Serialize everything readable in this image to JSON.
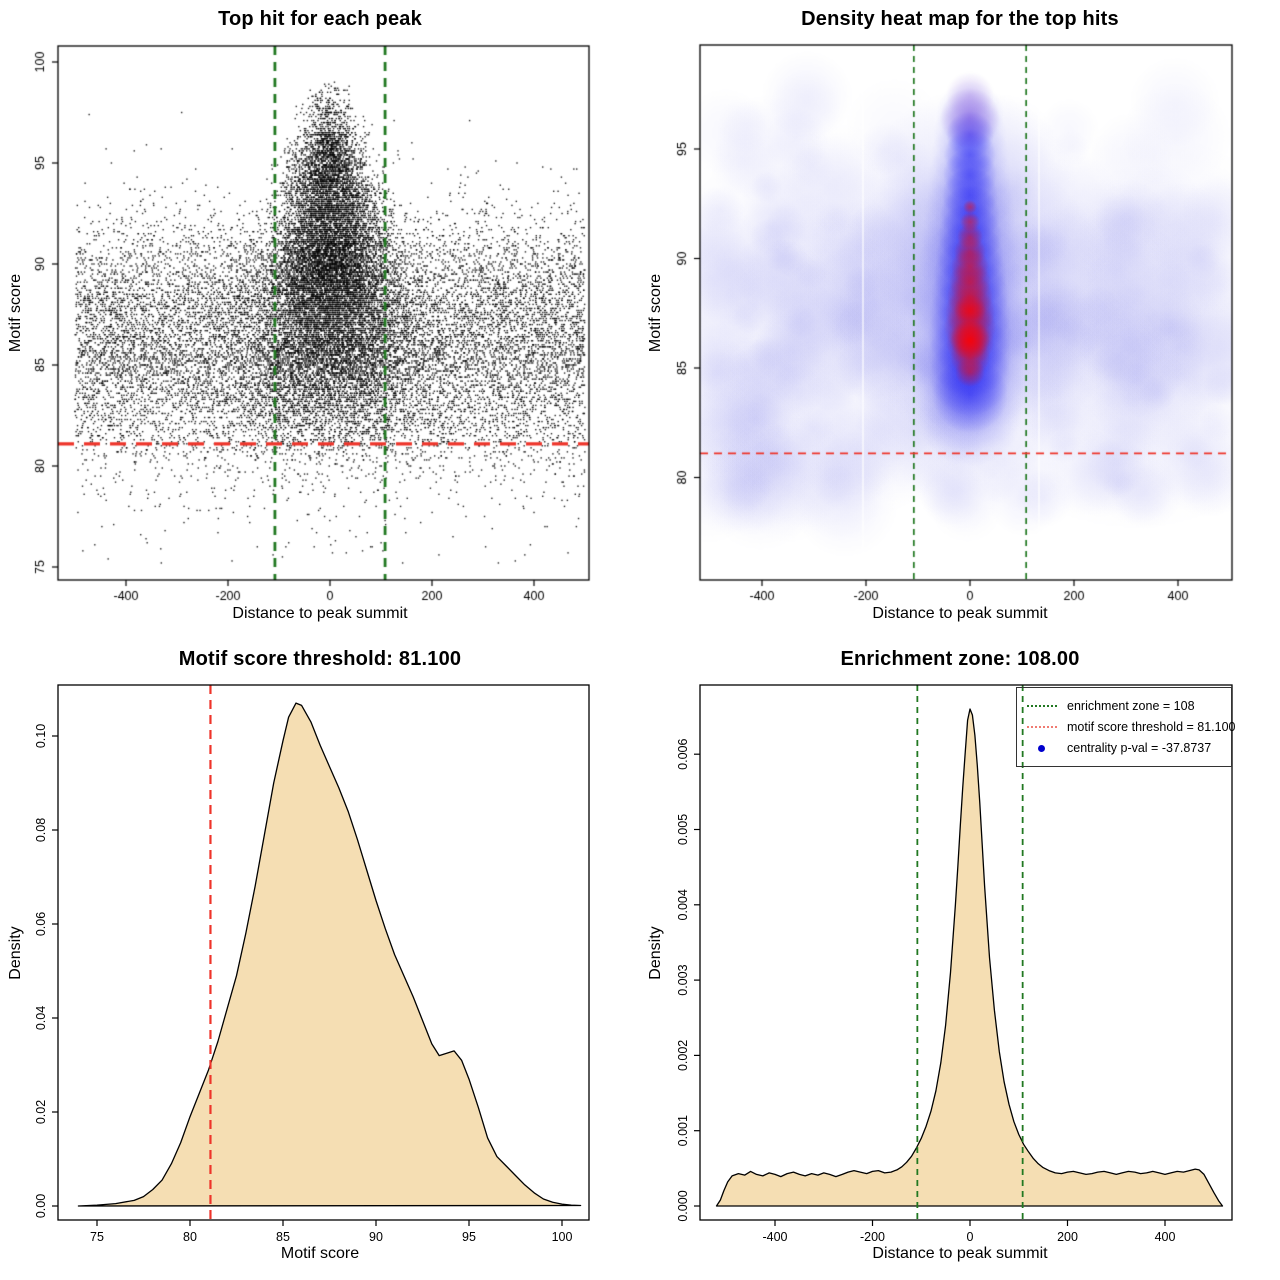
{
  "thresholds": {
    "motif_score_threshold": 81.1,
    "motif_score_threshold_label": "81.100",
    "enrichment_zone": 108,
    "enrichment_zone_label": "108.00",
    "centrality_p_val": "-37.8737"
  },
  "chart_data": [
    {
      "id": "top_hit_scatter",
      "type": "scatter",
      "title": "Top hit for each peak",
      "xlabel": "Distance to peak summit",
      "ylabel": "Motif score",
      "xlim": [
        -536,
        510
      ],
      "ylim": [
        74.4,
        100.8
      ],
      "xticks": [
        -400,
        -200,
        0,
        200,
        400
      ],
      "yticks": [
        75,
        80,
        85,
        90,
        95,
        100
      ],
      "points_description": "~26000 tiny black points; dense central column at distance 0 spanning scores 80-99.5 (widest below score 90, apex near 99.5), uniform background over distances -500..500 concentrated at scores 80-93, sparse outliers down to 75.5 and up to 97",
      "synthesis": {
        "n_background": 13000,
        "n_cluster": 13000,
        "seed": 1234
      },
      "vlines": [
        {
          "x": -108,
          "color": "#217821",
          "style": "dashed"
        },
        {
          "x": 108,
          "color": "#217821",
          "style": "dashed"
        }
      ],
      "hlines": [
        {
          "y": 81.1,
          "color": "#EE342A",
          "style": "dashed"
        }
      ]
    },
    {
      "id": "density_heatmap",
      "type": "heatmap",
      "title": "Density heat map for the top hits",
      "xlabel": "Distance to peak summit",
      "ylabel": "Motif score",
      "xlim": [
        -490,
        505
      ],
      "ylim": [
        75.3,
        99.8
      ],
      "xticks": [
        -400,
        -200,
        0,
        200,
        400
      ],
      "yticks": [
        80,
        85,
        90,
        95
      ],
      "colormap": [
        "#FFFFFF",
        "#8C8CEB",
        "#0000FF",
        "#FF0000"
      ],
      "hotspot": {
        "x": 0,
        "score_range": [
          83,
          97.5
        ],
        "peak_score": 87,
        "description": "teardrop-shaped density maximum centered at distance 0; red core over scores ~85-93 (brightest ~87), solid blue halo scores ~82-97, fading purple tip to ~99"
      },
      "background": "faint mottled light-blue wash across all distances between scores ~79 and ~95; white below score ~78 and in upper corners; thin white grid artifact lines near x=-205 and x=+140",
      "vlines": [
        {
          "x": -108,
          "color": "#217821",
          "style": "dashed"
        },
        {
          "x": 108,
          "color": "#217821",
          "style": "dashed"
        }
      ],
      "hlines": [
        {
          "y": 81.1,
          "color": "#EE342A",
          "style": "dashed"
        }
      ]
    },
    {
      "id": "motif_score_density",
      "type": "area",
      "title": "Motif score threshold: 81.100",
      "xlabel": "Motif score",
      "ylabel": "Density",
      "xticks": [
        75,
        80,
        85,
        90,
        95,
        100
      ],
      "xtick_labels": [
        "75",
        "80",
        "85",
        "90",
        "95",
        "100"
      ],
      "yticks": [
        0,
        0.02,
        0.04,
        0.06,
        0.08,
        0.1
      ],
      "ytick_labels": [
        "0.00",
        "0.02",
        "0.04",
        "0.06",
        "0.08",
        "0.10"
      ],
      "fill": "#F5DEB3",
      "stroke": "#000000",
      "vlines": [
        {
          "x": 81.1,
          "color": "#EE342A",
          "style": "dashed"
        }
      ],
      "curve": [
        [
          74,
          0
        ],
        [
          75,
          0.0002
        ],
        [
          76,
          0.0005
        ],
        [
          77,
          0.0012
        ],
        [
          77.5,
          0.002
        ],
        [
          78,
          0.0035
        ],
        [
          78.5,
          0.0055
        ],
        [
          79,
          0.009
        ],
        [
          79.5,
          0.0135
        ],
        [
          80,
          0.019
        ],
        [
          80.5,
          0.024
        ],
        [
          81,
          0.029
        ],
        [
          81.5,
          0.035
        ],
        [
          82,
          0.042
        ],
        [
          82.5,
          0.049
        ],
        [
          83,
          0.058
        ],
        [
          83.5,
          0.068
        ],
        [
          84,
          0.079
        ],
        [
          84.5,
          0.09
        ],
        [
          85,
          0.099
        ],
        [
          85.3,
          0.104
        ],
        [
          85.7,
          0.107
        ],
        [
          86,
          0.1065
        ],
        [
          86.5,
          0.103
        ],
        [
          87,
          0.098
        ],
        [
          87.5,
          0.0935
        ],
        [
          88,
          0.089
        ],
        [
          88.5,
          0.084
        ],
        [
          89,
          0.078
        ],
        [
          89.5,
          0.0715
        ],
        [
          90,
          0.065
        ],
        [
          90.5,
          0.059
        ],
        [
          91,
          0.0535
        ],
        [
          91.5,
          0.049
        ],
        [
          92,
          0.0445
        ],
        [
          92.5,
          0.0395
        ],
        [
          93,
          0.0345
        ],
        [
          93.4,
          0.032
        ],
        [
          93.8,
          0.0325
        ],
        [
          94.2,
          0.033
        ],
        [
          94.6,
          0.031
        ],
        [
          95,
          0.027
        ],
        [
          95.5,
          0.021
        ],
        [
          96,
          0.0145
        ],
        [
          96.5,
          0.0105
        ],
        [
          97,
          0.0085
        ],
        [
          97.5,
          0.0065
        ],
        [
          98,
          0.0045
        ],
        [
          98.5,
          0.0028
        ],
        [
          99,
          0.0015
        ],
        [
          99.5,
          0.0008
        ],
        [
          100,
          0.0004
        ],
        [
          100.5,
          0.0002
        ],
        [
          101,
          0.0001
        ]
      ]
    },
    {
      "id": "summit_distance_density",
      "type": "area",
      "title": "Enrichment zone: 108.00",
      "xlabel": "Distance to peak summit",
      "ylabel": "Density",
      "xticks": [
        -400,
        -200,
        0,
        200,
        400
      ],
      "xtick_labels": [
        "-400",
        "-200",
        "0",
        "200",
        "400"
      ],
      "yticks": [
        0,
        0.001,
        0.002,
        0.003,
        0.004,
        0.005,
        0.006
      ],
      "ytick_labels": [
        "0.000",
        "0.001",
        "0.002",
        "0.003",
        "0.004",
        "0.005",
        "0.006"
      ],
      "fill": "#F5DEB3",
      "stroke": "#000000",
      "vlines": [
        {
          "x": -108,
          "color": "#217821",
          "style": "dashed"
        },
        {
          "x": 108,
          "color": "#217821",
          "style": "dashed"
        }
      ],
      "legend": {
        "position": "topright",
        "items": [
          {
            "swatch": "dotted-line",
            "color": "#217821",
            "label": "enrichment zone = 108"
          },
          {
            "swatch": "dotted-line",
            "color": "#F07B72",
            "label": "motif score threshold = 81.100"
          },
          {
            "swatch": "dot",
            "color": "#0000CD",
            "label": "centrality p-val = -37.8737"
          }
        ]
      },
      "curve": [
        [
          -520,
          0
        ],
        [
          -512,
          8e-05
        ],
        [
          -505,
          0.0002
        ],
        [
          -497,
          0.00032
        ],
        [
          -488,
          0.0004
        ],
        [
          -475,
          0.00043
        ],
        [
          -462,
          0.00041
        ],
        [
          -450,
          0.00046
        ],
        [
          -438,
          0.00042
        ],
        [
          -425,
          0.0004
        ],
        [
          -412,
          0.00044
        ],
        [
          -400,
          0.00042
        ],
        [
          -388,
          0.00039
        ],
        [
          -375,
          0.00043
        ],
        [
          -362,
          0.00045
        ],
        [
          -350,
          0.00042
        ],
        [
          -338,
          0.0004
        ],
        [
          -325,
          0.00043
        ],
        [
          -312,
          0.00041
        ],
        [
          -300,
          0.00044
        ],
        [
          -288,
          0.00042
        ],
        [
          -275,
          0.00039
        ],
        [
          -262,
          0.00042
        ],
        [
          -250,
          0.00045
        ],
        [
          -238,
          0.00047
        ],
        [
          -225,
          0.00045
        ],
        [
          -212,
          0.00043
        ],
        [
          -200,
          0.00046
        ],
        [
          -188,
          0.00047
        ],
        [
          -175,
          0.00044
        ],
        [
          -162,
          0.00045
        ],
        [
          -150,
          0.00048
        ],
        [
          -140,
          0.00052
        ],
        [
          -130,
          0.00058
        ],
        [
          -120,
          0.00066
        ],
        [
          -110,
          0.00077
        ],
        [
          -100,
          0.0009
        ],
        [
          -90,
          0.00106
        ],
        [
          -80,
          0.00126
        ],
        [
          -70,
          0.00153
        ],
        [
          -60,
          0.0019
        ],
        [
          -50,
          0.0024
        ],
        [
          -40,
          0.0031
        ],
        [
          -30,
          0.004
        ],
        [
          -25,
          0.0045
        ],
        [
          -20,
          0.00505
        ],
        [
          -15,
          0.00555
        ],
        [
          -10,
          0.006
        ],
        [
          -5,
          0.00645
        ],
        [
          0,
          0.0066
        ],
        [
          5,
          0.00652
        ],
        [
          10,
          0.00625
        ],
        [
          15,
          0.00585
        ],
        [
          20,
          0.00535
        ],
        [
          25,
          0.0048
        ],
        [
          30,
          0.00425
        ],
        [
          40,
          0.0033
        ],
        [
          50,
          0.0026
        ],
        [
          60,
          0.00205
        ],
        [
          70,
          0.00165
        ],
        [
          80,
          0.00135
        ],
        [
          90,
          0.00112
        ],
        [
          100,
          0.00095
        ],
        [
          110,
          0.00082
        ],
        [
          120,
          0.00072
        ],
        [
          130,
          0.00063
        ],
        [
          140,
          0.00056
        ],
        [
          150,
          0.00051
        ],
        [
          162,
          0.00047
        ],
        [
          175,
          0.00044
        ],
        [
          188,
          0.00043
        ],
        [
          200,
          0.00045
        ],
        [
          212,
          0.00046
        ],
        [
          225,
          0.00044
        ],
        [
          238,
          0.00042
        ],
        [
          250,
          0.00043
        ],
        [
          262,
          0.00045
        ],
        [
          275,
          0.00046
        ],
        [
          288,
          0.00044
        ],
        [
          300,
          0.00042
        ],
        [
          312,
          0.00044
        ],
        [
          325,
          0.00046
        ],
        [
          338,
          0.00045
        ],
        [
          350,
          0.00043
        ],
        [
          362,
          0.00044
        ],
        [
          375,
          0.00046
        ],
        [
          388,
          0.00044
        ],
        [
          400,
          0.00042
        ],
        [
          412,
          0.00044
        ],
        [
          425,
          0.00046
        ],
        [
          438,
          0.00045
        ],
        [
          450,
          0.00047
        ],
        [
          462,
          0.00049
        ],
        [
          470,
          0.00048
        ],
        [
          480,
          0.00042
        ],
        [
          490,
          0.0003
        ],
        [
          500,
          0.00018
        ],
        [
          510,
          7e-05
        ],
        [
          518,
          0
        ]
      ]
    }
  ]
}
